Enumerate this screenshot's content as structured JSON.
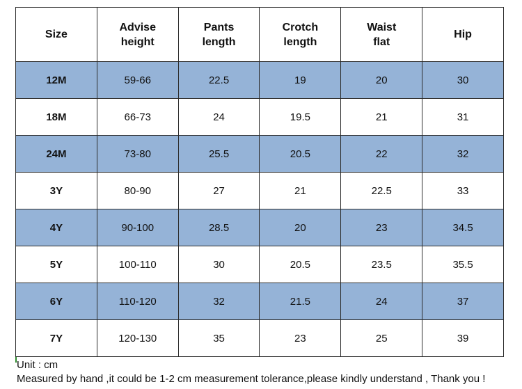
{
  "table": {
    "headers": [
      [
        "Size"
      ],
      [
        "Advise",
        "height"
      ],
      [
        "Pants",
        "length"
      ],
      [
        "Crotch",
        "length"
      ],
      [
        "Waist",
        "flat"
      ],
      [
        "Hip"
      ]
    ],
    "rows": [
      {
        "size": "12M",
        "height": "59-66",
        "pants_length": "22.5",
        "crotch_length": "19",
        "waist_flat": "20",
        "hip": "30"
      },
      {
        "size": "18M",
        "height": "66-73",
        "pants_length": "24",
        "crotch_length": "19.5",
        "waist_flat": "21",
        "hip": "31"
      },
      {
        "size": "24M",
        "height": "73-80",
        "pants_length": "25.5",
        "crotch_length": "20.5",
        "waist_flat": "22",
        "hip": "32"
      },
      {
        "size": "3Y",
        "height": "80-90",
        "pants_length": "27",
        "crotch_length": "21",
        "waist_flat": "22.5",
        "hip": "33"
      },
      {
        "size": "4Y",
        "height": "90-100",
        "pants_length": "28.5",
        "crotch_length": "20",
        "waist_flat": "23",
        "hip": "34.5"
      },
      {
        "size": "5Y",
        "height": "100-110",
        "pants_length": "30",
        "crotch_length": "20.5",
        "waist_flat": "23.5",
        "hip": "35.5"
      },
      {
        "size": "6Y",
        "height": "110-120",
        "pants_length": "32",
        "crotch_length": "21.5",
        "waist_flat": "24",
        "hip": "37"
      },
      {
        "size": "7Y",
        "height": "120-130",
        "pants_length": "35",
        "crotch_length": "23",
        "waist_flat": "25",
        "hip": "39"
      }
    ]
  },
  "notes": {
    "unit": "Unit : cm",
    "disclaimer": "Measured by hand ,it could be 1-2 cm measurement tolerance,please kindly understand , Thank you !"
  },
  "colors": {
    "shaded_row": "#95b3d7",
    "plain_row": "#ffffff",
    "border": "#2b2b2b"
  }
}
